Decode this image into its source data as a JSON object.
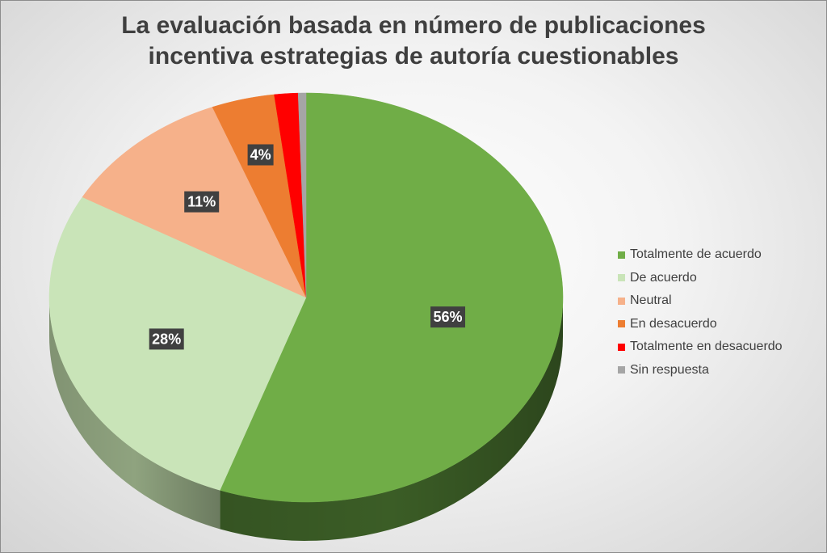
{
  "chart_data": {
    "type": "pie",
    "title_lines": [
      "La evaluación basada en número de publicaciones",
      "incentiva estrategias de autoría cuestionables"
    ],
    "categories": [
      "Totalmente de acuerdo",
      "De acuerdo",
      "Neutral",
      "En desacuerdo",
      "Totalmente en desacuerdo",
      "Sin respuesta"
    ],
    "values": [
      56,
      28,
      11,
      4,
      1.5,
      0.5
    ],
    "data_labels": [
      "56%",
      "28%",
      "11%",
      "4%",
      "",
      ""
    ],
    "colors": [
      "#70ad47",
      "#c9e4b8",
      "#f6b18a",
      "#ed7d31",
      "#ff0000",
      "#a5a5a5"
    ],
    "side_colors": [
      "#3b5d26",
      "#8fa37f",
      "#b07e63",
      "#a85923",
      "#b30000",
      "#777777"
    ],
    "legend_position": "right",
    "style": "3d-pie"
  }
}
